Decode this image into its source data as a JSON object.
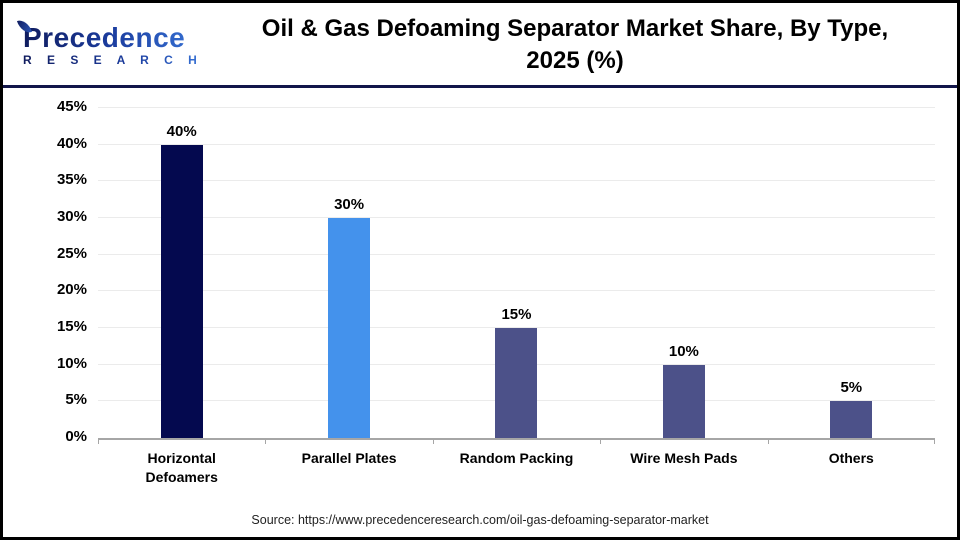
{
  "header": {
    "logo_name": "Precedence",
    "logo_sub": "R E S E A R C H",
    "title_line1": "Oil & Gas Defoaming Separator Market Share, By Type,",
    "title_line2": "2025 (%)"
  },
  "chart_data": {
    "type": "bar",
    "title": "Oil & Gas Defoaming Separator Market Share, By Type, 2025 (%)",
    "categories": [
      "Horizontal Defoamers",
      "Parallel Plates",
      "Random Packing",
      "Wire Mesh Pads",
      "Others"
    ],
    "values": [
      40,
      30,
      15,
      10,
      5
    ],
    "value_labels": [
      "40%",
      "30%",
      "15%",
      "10%",
      "5%"
    ],
    "bar_colors": [
      "#04094F",
      "#4492EC",
      "#4C5189",
      "#4C5189",
      "#4C5189"
    ],
    "xlabel": "",
    "ylabel": "",
    "ylim": [
      0,
      45
    ],
    "ytick_step": 5,
    "ytick_suffix": "%",
    "grid": true,
    "legend_position": "none"
  },
  "style_colors": {
    "axis": "#A6A6A6",
    "gridline": "#EBEBEB",
    "divider": "#12164A",
    "navy": "#04094F",
    "blue": "#4492EC",
    "slate": "#4C5189"
  },
  "footer": {
    "source": "Source: https://www.precedenceresearch.com/oil-gas-defoaming-separator-market"
  }
}
